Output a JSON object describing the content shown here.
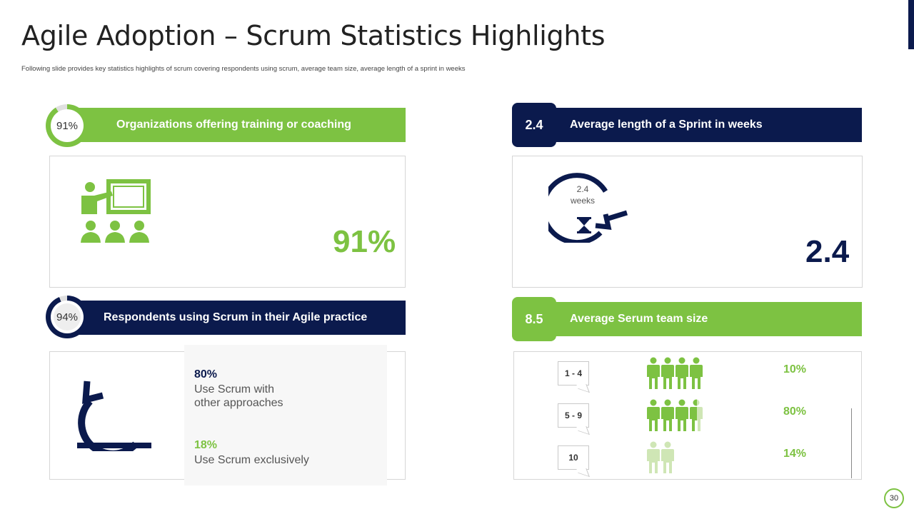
{
  "slide": {
    "title": "Agile Adoption – Scrum Statistics Highlights",
    "subtitle": "Following slide provides key statistics highlights of scrum covering respondents using scrum, average team size, average length of a sprint in weeks",
    "page_number": "30"
  },
  "colors": {
    "green": "#7dc242",
    "navy": "#0b1a4d",
    "light_green": "#cfe6b5"
  },
  "training": {
    "badge": "91%",
    "badge_fraction": 0.91,
    "header": "Organizations offering training or coaching",
    "value": "91%",
    "icon": "presentation-training-icon"
  },
  "sprint": {
    "tab_value": "2.4",
    "header": "Average length of  a Sprint in weeks",
    "icon_text_line1": "2.4",
    "icon_text_line2": "weeks",
    "value": "2.4",
    "icon": "sprint-cycle-hourglass-icon"
  },
  "scrum_usage": {
    "badge": "94%",
    "badge_fraction": 0.94,
    "header": "Respondents using Scrum  in their Agile practice",
    "icon": "scrum-loop-arrow-icon",
    "stat1_value": "80%",
    "stat1_desc_line1": "Use Scrum with",
    "stat1_desc_line2": "other approaches",
    "stat2_value": "18%",
    "stat2_desc": "Use Scrum exclusively"
  },
  "team_size": {
    "tab_value": "8.5",
    "header": "Average Serum team size",
    "rows": [
      {
        "range": "1 - 4",
        "percent": "10%",
        "people_full": 4,
        "people_light": 0
      },
      {
        "range": "5 - 9",
        "percent": "80%",
        "people_full": 3.5,
        "people_light": 0.5
      },
      {
        "range": "10",
        "percent": "14%",
        "people_full": 0,
        "people_light": 2
      }
    ]
  }
}
